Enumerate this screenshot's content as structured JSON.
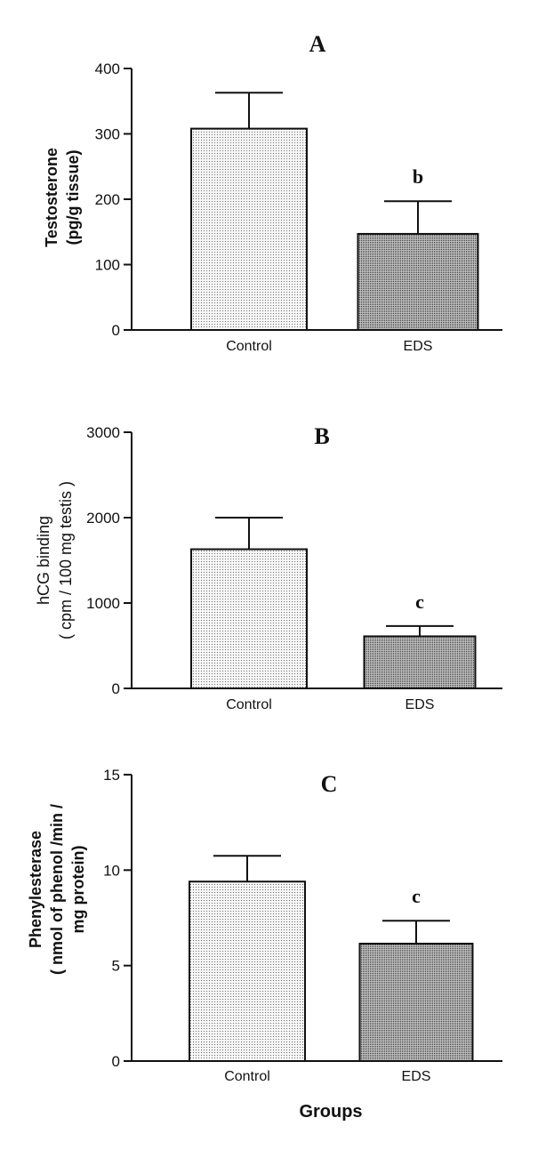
{
  "x_title": "Groups",
  "colors": {
    "control_fill": "#f3f3f3",
    "eds_fill": "#9a9a9a",
    "ink": "#111111"
  },
  "chart_data": [
    {
      "type": "bar",
      "panel": "A",
      "categories": [
        "Control",
        "EDS"
      ],
      "values": [
        308,
        147
      ],
      "errors": [
        55,
        50
      ],
      "annotations": [
        "",
        "b"
      ],
      "ylabel_line1": "Testosterone",
      "ylabel_line2": "(pg/g tissue)",
      "ylim": [
        0,
        400
      ],
      "yticks": [
        0,
        100,
        200,
        300,
        400
      ],
      "ytick_labels": [
        "0",
        "100",
        "200",
        "300",
        "400"
      ]
    },
    {
      "type": "bar",
      "panel": "B",
      "categories": [
        "Control",
        "EDS"
      ],
      "values": [
        1630,
        610
      ],
      "errors": [
        370,
        120
      ],
      "annotations": [
        "",
        "c"
      ],
      "ylabel_line1": "hCG binding",
      "ylabel_line2": "( cpm / 100 mg testis )",
      "ylim": [
        0,
        3000
      ],
      "yticks": [
        0,
        1000,
        2000,
        3000
      ],
      "ytick_labels": [
        "0",
        "1000",
        "2000",
        "3000"
      ]
    },
    {
      "type": "bar",
      "panel": "C",
      "categories": [
        "Control",
        "EDS"
      ],
      "values": [
        9.4,
        6.15
      ],
      "errors": [
        1.35,
        1.2
      ],
      "annotations": [
        "",
        "c"
      ],
      "ylabel_line1": "Phenylesterase",
      "ylabel_line2": "( nmol of phenol /min /",
      "ylabel_line3": "mg protein)",
      "ylim": [
        0,
        15
      ],
      "yticks": [
        0,
        5,
        10,
        15
      ],
      "ytick_labels": [
        "0",
        "5",
        "10",
        "15"
      ]
    }
  ]
}
